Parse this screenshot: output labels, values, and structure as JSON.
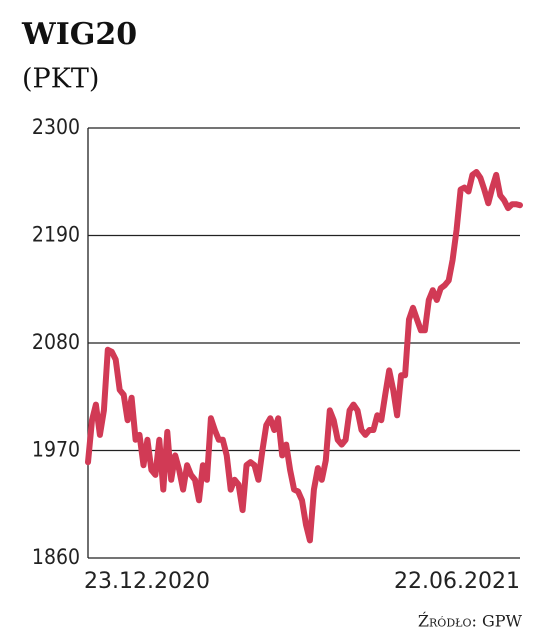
{
  "chart_data": {
    "type": "line",
    "title": "WIG20",
    "subtitle": "(PKT)",
    "source": "Źródło: GPW",
    "color": "#d13a55",
    "ylim": [
      1860,
      2300
    ],
    "yticks": [
      1860,
      1970,
      2080,
      2190,
      2300
    ],
    "grid": true,
    "categories": [
      "23.12.2020",
      null,
      null,
      null,
      null,
      null,
      null,
      null,
      null,
      null,
      null,
      null,
      null,
      null,
      null,
      null,
      null,
      null,
      null,
      null,
      null,
      null,
      null,
      null,
      null,
      null,
      null,
      null,
      null,
      null,
      null,
      null,
      null,
      null,
      null,
      null,
      null,
      null,
      null,
      null,
      null,
      null,
      null,
      null,
      null,
      null,
      null,
      null,
      null,
      null,
      null,
      null,
      null,
      null,
      null,
      null,
      null,
      null,
      null,
      null,
      null,
      null,
      null,
      null,
      null,
      null,
      null,
      null,
      null,
      null,
      null,
      null,
      null,
      null,
      null,
      null,
      null,
      null,
      null,
      null,
      null,
      null,
      null,
      null,
      null,
      null,
      null,
      null,
      null,
      null,
      null,
      null,
      null,
      null,
      null,
      null,
      null,
      null,
      null,
      null,
      null,
      null,
      null,
      null,
      null,
      null,
      null,
      null,
      null,
      "22.06.2021"
    ],
    "values": [
      1958,
      2001,
      2017,
      1986,
      2011,
      2073,
      2071,
      2063,
      2032,
      2027,
      2001,
      2024,
      1981,
      1986,
      1955,
      1981,
      1950,
      1945,
      1981,
      1930,
      1989,
      1940,
      1965,
      1950,
      1930,
      1955,
      1945,
      1940,
      1919,
      1955,
      1940,
      2003,
      1991,
      1981,
      1981,
      1965,
      1930,
      1940,
      1935,
      1909,
      1955,
      1958,
      1955,
      1940,
      1970,
      1996,
      2003,
      1991,
      2003,
      1965,
      1976,
      1950,
      1930,
      1928,
      1919,
      1894,
      1878,
      1930,
      1952,
      1940,
      1960,
      2011,
      2001,
      1981,
      1976,
      1981,
      2011,
      2017,
      2011,
      1991,
      1986,
      1991,
      1991,
      2006,
      2001,
      2027,
      2052,
      2032,
      2006,
      2047,
      2047,
      2104,
      2116,
      2104,
      2093,
      2093,
      2124,
      2134,
      2124,
      2136,
      2139,
      2144,
      2165,
      2196,
      2237,
      2239,
      2235,
      2252,
      2255,
      2249,
      2237,
      2223,
      2239,
      2252,
      2231,
      2226,
      2218,
      2222,
      2222,
      2221
    ]
  }
}
